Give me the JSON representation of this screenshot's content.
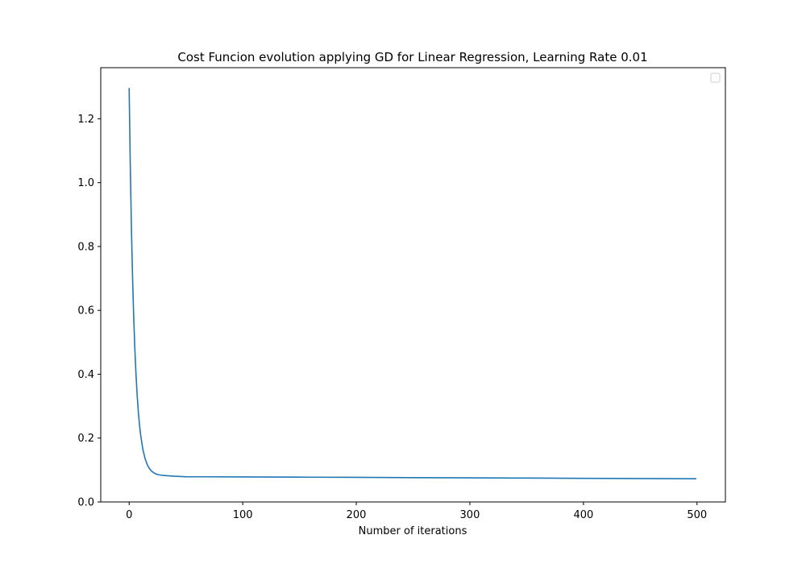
{
  "chart_data": {
    "type": "line",
    "title": "Cost Funcion evolution applying GD for Linear Regression, Learning Rate 0.01",
    "xlabel": "Number of iterations",
    "ylabel": "",
    "xlim": [
      -25,
      525
    ],
    "ylim": [
      0,
      1.36
    ],
    "x_ticks": [
      0,
      100,
      200,
      300,
      400,
      500
    ],
    "y_ticks": [
      0.0,
      0.2,
      0.4,
      0.6,
      0.8,
      1.0,
      1.2
    ],
    "x_tick_labels": [
      "0",
      "100",
      "200",
      "300",
      "400",
      "500"
    ],
    "y_tick_labels": [
      "0.0",
      "0.2",
      "0.4",
      "0.6",
      "0.8",
      "1.0",
      "1.2"
    ],
    "grid": false,
    "legend": {
      "placement": "top-right",
      "entries": []
    },
    "series": [
      {
        "color": "#1f77b4",
        "x": [
          0,
          1,
          2,
          3,
          4,
          5,
          6,
          7,
          8,
          9,
          10,
          12,
          14,
          16,
          18,
          20,
          22,
          25,
          30,
          40,
          50,
          100,
          150,
          200,
          250,
          300,
          350,
          400,
          450,
          499
        ],
        "y": [
          1.295,
          1.053,
          0.86,
          0.705,
          0.581,
          0.482,
          0.402,
          0.338,
          0.287,
          0.246,
          0.213,
          0.166,
          0.136,
          0.1165,
          0.1038,
          0.0957,
          0.0904,
          0.0858,
          0.083,
          0.0805,
          0.079,
          0.0785,
          0.0777,
          0.077,
          0.0762,
          0.0755,
          0.0748,
          0.074,
          0.0733,
          0.0728
        ]
      }
    ]
  }
}
